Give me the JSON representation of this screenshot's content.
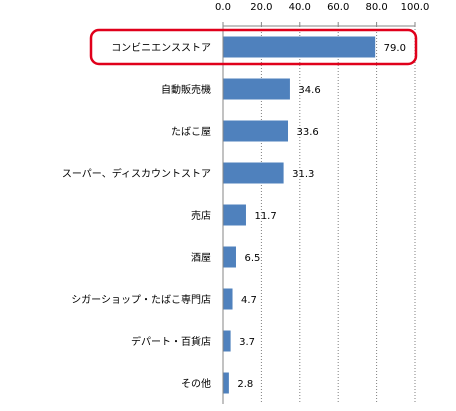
{
  "chart_data": {
    "type": "bar",
    "orientation": "horizontal",
    "categories": [
      "コンビニエンスストア",
      "自動販売機",
      "たばこ屋",
      "スーパー、ディスカウントストア",
      "売店",
      "酒屋",
      "シガーショップ・たばこ専門店",
      "デパート・百貨店",
      "その他"
    ],
    "values": [
      79.0,
      34.6,
      33.6,
      31.3,
      11.7,
      6.5,
      4.7,
      3.7,
      2.8
    ],
    "value_labels": [
      "79.0",
      "34.6",
      "33.6",
      "31.3",
      "11.7",
      "6.5",
      "4.7",
      "3.7",
      "2.8"
    ],
    "xlim": [
      0,
      100
    ],
    "x_ticks": [
      "0.0",
      "20.0",
      "40.0",
      "60.0",
      "80.0",
      "100.0"
    ],
    "axis_position": "top",
    "grid": "vertical dotted",
    "highlight_index": 0,
    "colors": {
      "bar": "#4f81bd",
      "highlight": "#e0001b",
      "grid": "#7f7f7f",
      "axis": "#868686"
    }
  }
}
